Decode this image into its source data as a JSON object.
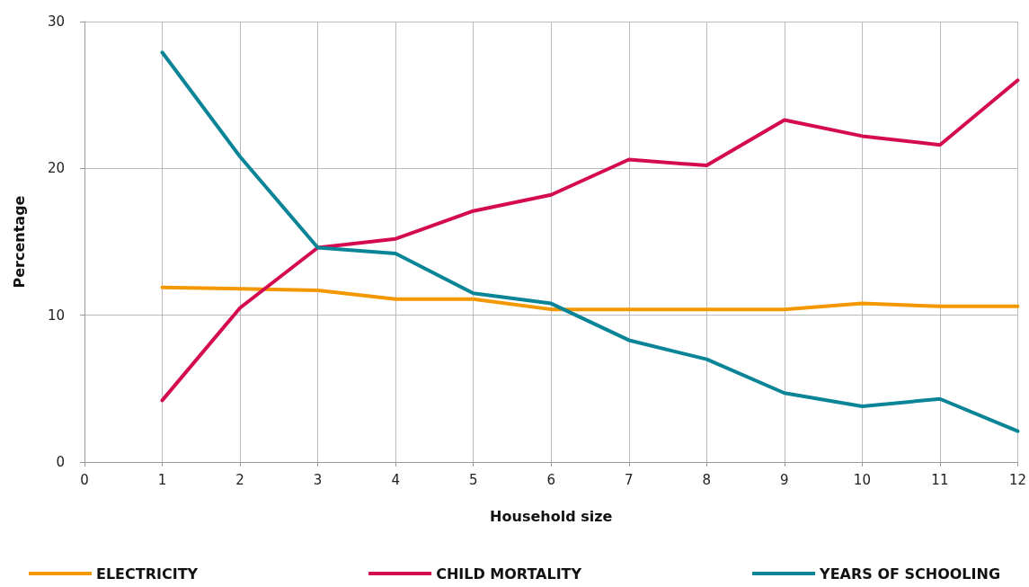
{
  "chart_data": {
    "type": "line",
    "xlabel": "Household size",
    "ylabel": "Percentage",
    "x": [
      1,
      2,
      3,
      4,
      5,
      6,
      7,
      8,
      9,
      10,
      11,
      12
    ],
    "series": [
      {
        "name": "ELECTRICITY",
        "color": "#f39800",
        "values": [
          11.9,
          11.8,
          11.7,
          11.1,
          11.1,
          10.4,
          10.4,
          10.4,
          10.4,
          10.8,
          10.6,
          10.6
        ]
      },
      {
        "name": "CHILD MORTALITY",
        "color": "#d50b52",
        "values": [
          4.2,
          10.5,
          14.6,
          15.2,
          17.1,
          18.2,
          20.6,
          20.2,
          23.3,
          22.2,
          21.6,
          26.0
        ]
      },
      {
        "name": "YEARS OF SCHOOLING",
        "color": "#0a8497",
        "values": [
          27.9,
          20.8,
          14.6,
          14.2,
          11.5,
          10.8,
          8.3,
          7.0,
          4.7,
          3.8,
          4.3,
          2.1
        ]
      }
    ],
    "xlim": [
      0,
      12
    ],
    "xticks": [
      0,
      1,
      2,
      3,
      4,
      5,
      6,
      7,
      8,
      9,
      10,
      11,
      12
    ],
    "ylim": [
      0,
      30
    ],
    "yticks": [
      0,
      10,
      20,
      30
    ],
    "grid": true,
    "legend": "bottom",
    "marker": "none",
    "line_style": "solid"
  }
}
